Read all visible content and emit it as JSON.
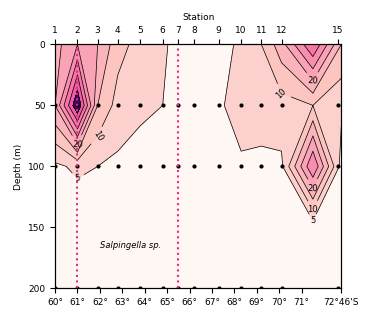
{
  "chart_data": {
    "type": "contour",
    "top_axis_label": "Station",
    "ylabel": "Depth (m)",
    "annotation": "Salpingella sp.",
    "x": [
      60.0,
      61.0,
      61.9,
      62.8,
      63.8,
      64.8,
      65.5,
      66.2,
      67.3,
      68.3,
      69.2,
      70.1,
      71.5,
      72.767
    ],
    "y": [
      0,
      50,
      100,
      150,
      200
    ],
    "values": [
      [
        18,
        25,
        20,
        12,
        8,
        6,
        3,
        2,
        3,
        6,
        10,
        18,
        35,
        15
      ],
      [
        20,
        45,
        15,
        8,
        6,
        5,
        4,
        3,
        4,
        8,
        7,
        8,
        10,
        6
      ],
      [
        4,
        6,
        5,
        4,
        3,
        3,
        2,
        5,
        3,
        4,
        4,
        4,
        30,
        3
      ],
      [
        1,
        1,
        1,
        1,
        1,
        1,
        1,
        1,
        1,
        1,
        1,
        1,
        2,
        1
      ],
      [
        2,
        1,
        1,
        1,
        1,
        1,
        1,
        1,
        1,
        1,
        1,
        1,
        1,
        1
      ]
    ],
    "contour_levels": [
      5,
      10,
      15,
      20,
      25,
      30,
      35,
      40
    ],
    "contour_labels": [
      5,
      10,
      20
    ],
    "stations": [
      {
        "value": 60.0,
        "label": "1"
      },
      {
        "value": 61.0,
        "label": "2"
      },
      {
        "value": 61.9,
        "label": "3"
      },
      {
        "value": 62.8,
        "label": "4"
      },
      {
        "value": 63.8,
        "label": "5"
      },
      {
        "value": 64.8,
        "label": "6"
      },
      {
        "value": 65.5,
        "label": "7"
      },
      {
        "value": 66.2,
        "label": "8"
      },
      {
        "value": 67.3,
        "label": "9"
      },
      {
        "value": 68.3,
        "label": "10"
      },
      {
        "value": 69.2,
        "label": "11"
      },
      {
        "value": 70.1,
        "label": "12"
      },
      {
        "value": 72.6,
        "label": "15"
      }
    ],
    "sample_depths": [
      50,
      100,
      200
    ],
    "highlight_stations": [
      61.0,
      65.5
    ],
    "xlim": [
      60,
      72.767
    ],
    "xticks": [
      {
        "value": 60,
        "label": "60°"
      },
      {
        "value": 61,
        "label": "61°"
      },
      {
        "value": 62,
        "label": "62°"
      },
      {
        "value": 63,
        "label": "63°"
      },
      {
        "value": 64,
        "label": "64°"
      },
      {
        "value": 65,
        "label": "65°"
      },
      {
        "value": 66,
        "label": "66°"
      },
      {
        "value": 67,
        "label": "67°"
      },
      {
        "value": 68,
        "label": "68°"
      },
      {
        "value": 69,
        "label": "69°"
      },
      {
        "value": 70,
        "label": "70°"
      },
      {
        "value": 71,
        "label": "71°"
      },
      {
        "value": 72.767,
        "label": "72°46'S"
      }
    ],
    "ylim": [
      200,
      0
    ],
    "yticks": [
      0,
      50,
      100,
      150,
      200
    ],
    "color": "#e7298a",
    "line_style": "dotted"
  }
}
